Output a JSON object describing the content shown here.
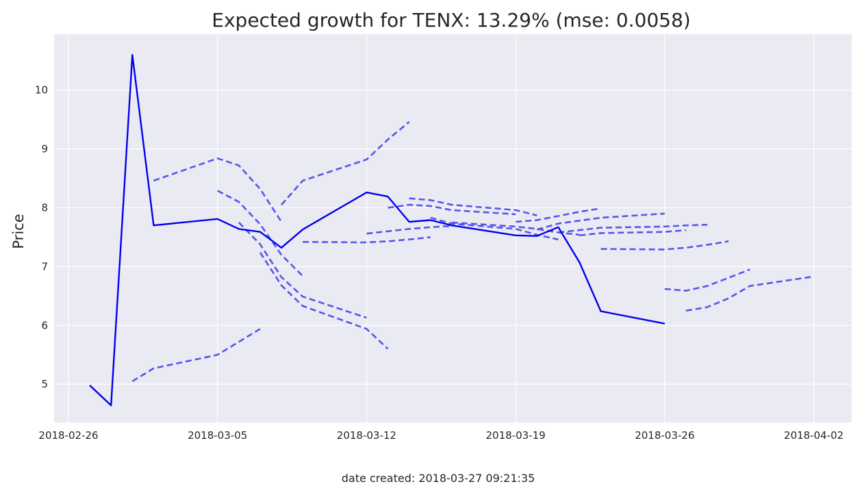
{
  "chart_data": {
    "type": "line",
    "title": "Expected growth for TENX: 13.29% (mse: 0.0058)",
    "xlabel": "",
    "ylabel": "Price",
    "footer": "date created: 2018-03-27 09:21:35",
    "x_axis": {
      "type": "date",
      "range": [
        "2018-02-25",
        "2018-04-02"
      ],
      "ticks": [
        "2018-02-26",
        "2018-03-05",
        "2018-03-12",
        "2018-03-19",
        "2018-03-26",
        "2018-04-02"
      ]
    },
    "y_axis": {
      "range": [
        4.35,
        10.95
      ],
      "ticks": [
        5,
        6,
        7,
        8,
        9,
        10
      ]
    },
    "grid": true,
    "background": "#eaeaf2",
    "grid_color": "#ffffff",
    "actual": {
      "color": "#0000ee",
      "style": "solid",
      "points": [
        [
          "2018-02-27",
          4.98
        ],
        [
          "2018-02-28",
          4.64
        ],
        [
          "2018-03-01",
          10.6
        ],
        [
          "2018-03-02",
          7.7
        ],
        [
          "2018-03-05",
          7.81
        ],
        [
          "2018-03-06",
          7.64
        ],
        [
          "2018-03-07",
          7.59
        ],
        [
          "2018-03-08",
          7.32
        ],
        [
          "2018-03-09",
          7.63
        ],
        [
          "2018-03-12",
          8.26
        ],
        [
          "2018-03-13",
          8.19
        ],
        [
          "2018-03-14",
          7.76
        ],
        [
          "2018-03-15",
          7.79
        ],
        [
          "2018-03-16",
          7.7
        ],
        [
          "2018-03-19",
          7.53
        ],
        [
          "2018-03-20",
          7.52
        ],
        [
          "2018-03-21",
          7.67
        ],
        [
          "2018-03-22",
          7.07
        ],
        [
          "2018-03-23",
          6.24
        ],
        [
          "2018-03-26",
          6.03
        ]
      ]
    },
    "forecast_style": {
      "color": "#5555ee",
      "style": "dashed"
    },
    "forecasts": [
      {
        "points": [
          [
            "2018-03-01",
            5.05
          ],
          [
            "2018-03-02",
            5.27
          ],
          [
            "2018-03-05",
            5.5
          ],
          [
            "2018-03-06",
            5.72
          ],
          [
            "2018-03-07",
            5.94
          ]
        ]
      },
      {
        "points": [
          [
            "2018-03-02",
            8.46
          ],
          [
            "2018-03-05",
            8.84
          ],
          [
            "2018-03-06",
            8.72
          ],
          [
            "2018-03-07",
            8.32
          ],
          [
            "2018-03-08",
            7.76
          ]
        ]
      },
      {
        "points": [
          [
            "2018-03-05",
            8.29
          ],
          [
            "2018-03-06",
            8.1
          ],
          [
            "2018-03-07",
            7.72
          ],
          [
            "2018-03-08",
            7.2
          ],
          [
            "2018-03-09",
            6.84
          ]
        ]
      },
      {
        "points": [
          [
            "2018-03-06",
            7.75
          ],
          [
            "2018-03-07",
            7.38
          ],
          [
            "2018-03-08",
            6.82
          ],
          [
            "2018-03-09",
            6.49
          ],
          [
            "2018-03-12",
            6.13
          ]
        ]
      },
      {
        "points": [
          [
            "2018-03-07",
            7.24
          ],
          [
            "2018-03-08",
            6.68
          ],
          [
            "2018-03-09",
            6.33
          ],
          [
            "2018-03-12",
            5.94
          ],
          [
            "2018-03-13",
            5.6
          ]
        ]
      },
      {
        "points": [
          [
            "2018-03-08",
            8.05
          ],
          [
            "2018-03-09",
            8.46
          ],
          [
            "2018-03-12",
            8.82
          ],
          [
            "2018-03-13",
            9.16
          ],
          [
            "2018-03-14",
            9.46
          ]
        ]
      },
      {
        "points": [
          [
            "2018-03-09",
            7.42
          ],
          [
            "2018-03-12",
            7.41
          ],
          [
            "2018-03-13",
            7.43
          ],
          [
            "2018-03-14",
            7.46
          ],
          [
            "2018-03-15",
            7.5
          ]
        ]
      },
      {
        "points": [
          [
            "2018-03-12",
            7.56
          ],
          [
            "2018-03-13",
            7.6
          ],
          [
            "2018-03-14",
            7.64
          ],
          [
            "2018-03-15",
            7.67
          ],
          [
            "2018-03-16",
            7.69
          ]
        ]
      },
      {
        "points": [
          [
            "2018-03-13",
            8.0
          ],
          [
            "2018-03-14",
            8.05
          ],
          [
            "2018-03-15",
            8.03
          ],
          [
            "2018-03-16",
            7.96
          ],
          [
            "2018-03-19",
            7.89
          ]
        ]
      },
      {
        "points": [
          [
            "2018-03-14",
            8.16
          ],
          [
            "2018-03-15",
            8.13
          ],
          [
            "2018-03-16",
            8.05
          ],
          [
            "2018-03-19",
            7.96
          ],
          [
            "2018-03-20",
            7.87
          ]
        ]
      },
      {
        "points": [
          [
            "2018-03-15",
            7.83
          ],
          [
            "2018-03-16",
            7.73
          ],
          [
            "2018-03-19",
            7.64
          ],
          [
            "2018-03-20",
            7.54
          ],
          [
            "2018-03-21",
            7.46
          ]
        ]
      },
      {
        "points": [
          [
            "2018-03-16",
            7.75
          ],
          [
            "2018-03-19",
            7.68
          ],
          [
            "2018-03-20",
            7.64
          ],
          [
            "2018-03-21",
            7.58
          ],
          [
            "2018-03-22",
            7.54
          ]
        ]
      },
      {
        "points": [
          [
            "2018-03-19",
            7.76
          ],
          [
            "2018-03-20",
            7.79
          ],
          [
            "2018-03-21",
            7.86
          ],
          [
            "2018-03-22",
            7.93
          ],
          [
            "2018-03-23",
            7.99
          ]
        ]
      },
      {
        "points": [
          [
            "2018-03-20",
            7.63
          ],
          [
            "2018-03-21",
            7.73
          ],
          [
            "2018-03-22",
            7.78
          ],
          [
            "2018-03-23",
            7.83
          ],
          [
            "2018-03-26",
            7.9
          ]
        ]
      },
      {
        "points": [
          [
            "2018-03-21",
            7.58
          ],
          [
            "2018-03-22",
            7.62
          ],
          [
            "2018-03-23",
            7.66
          ],
          [
            "2018-03-26",
            7.68
          ],
          [
            "2018-03-27",
            7.7
          ],
          [
            "2018-03-28",
            7.71
          ]
        ]
      },
      {
        "points": [
          [
            "2018-03-22",
            7.53
          ],
          [
            "2018-03-23",
            7.57
          ],
          [
            "2018-03-26",
            7.59
          ],
          [
            "2018-03-27",
            7.62
          ]
        ]
      },
      {
        "points": [
          [
            "2018-03-23",
            7.3
          ],
          [
            "2018-03-26",
            7.29
          ],
          [
            "2018-03-27",
            7.32
          ],
          [
            "2018-03-28",
            7.37
          ],
          [
            "2018-03-29",
            7.43
          ]
        ]
      },
      {
        "points": [
          [
            "2018-03-26",
            6.62
          ],
          [
            "2018-03-27",
            6.59
          ],
          [
            "2018-03-28",
            6.67
          ],
          [
            "2018-03-29",
            6.81
          ],
          [
            "2018-03-30",
            6.95
          ]
        ]
      },
      {
        "points": [
          [
            "2018-03-27",
            6.25
          ],
          [
            "2018-03-28",
            6.31
          ],
          [
            "2018-03-29",
            6.46
          ],
          [
            "2018-03-30",
            6.67
          ],
          [
            "2018-04-02",
            6.83
          ]
        ]
      }
    ]
  }
}
